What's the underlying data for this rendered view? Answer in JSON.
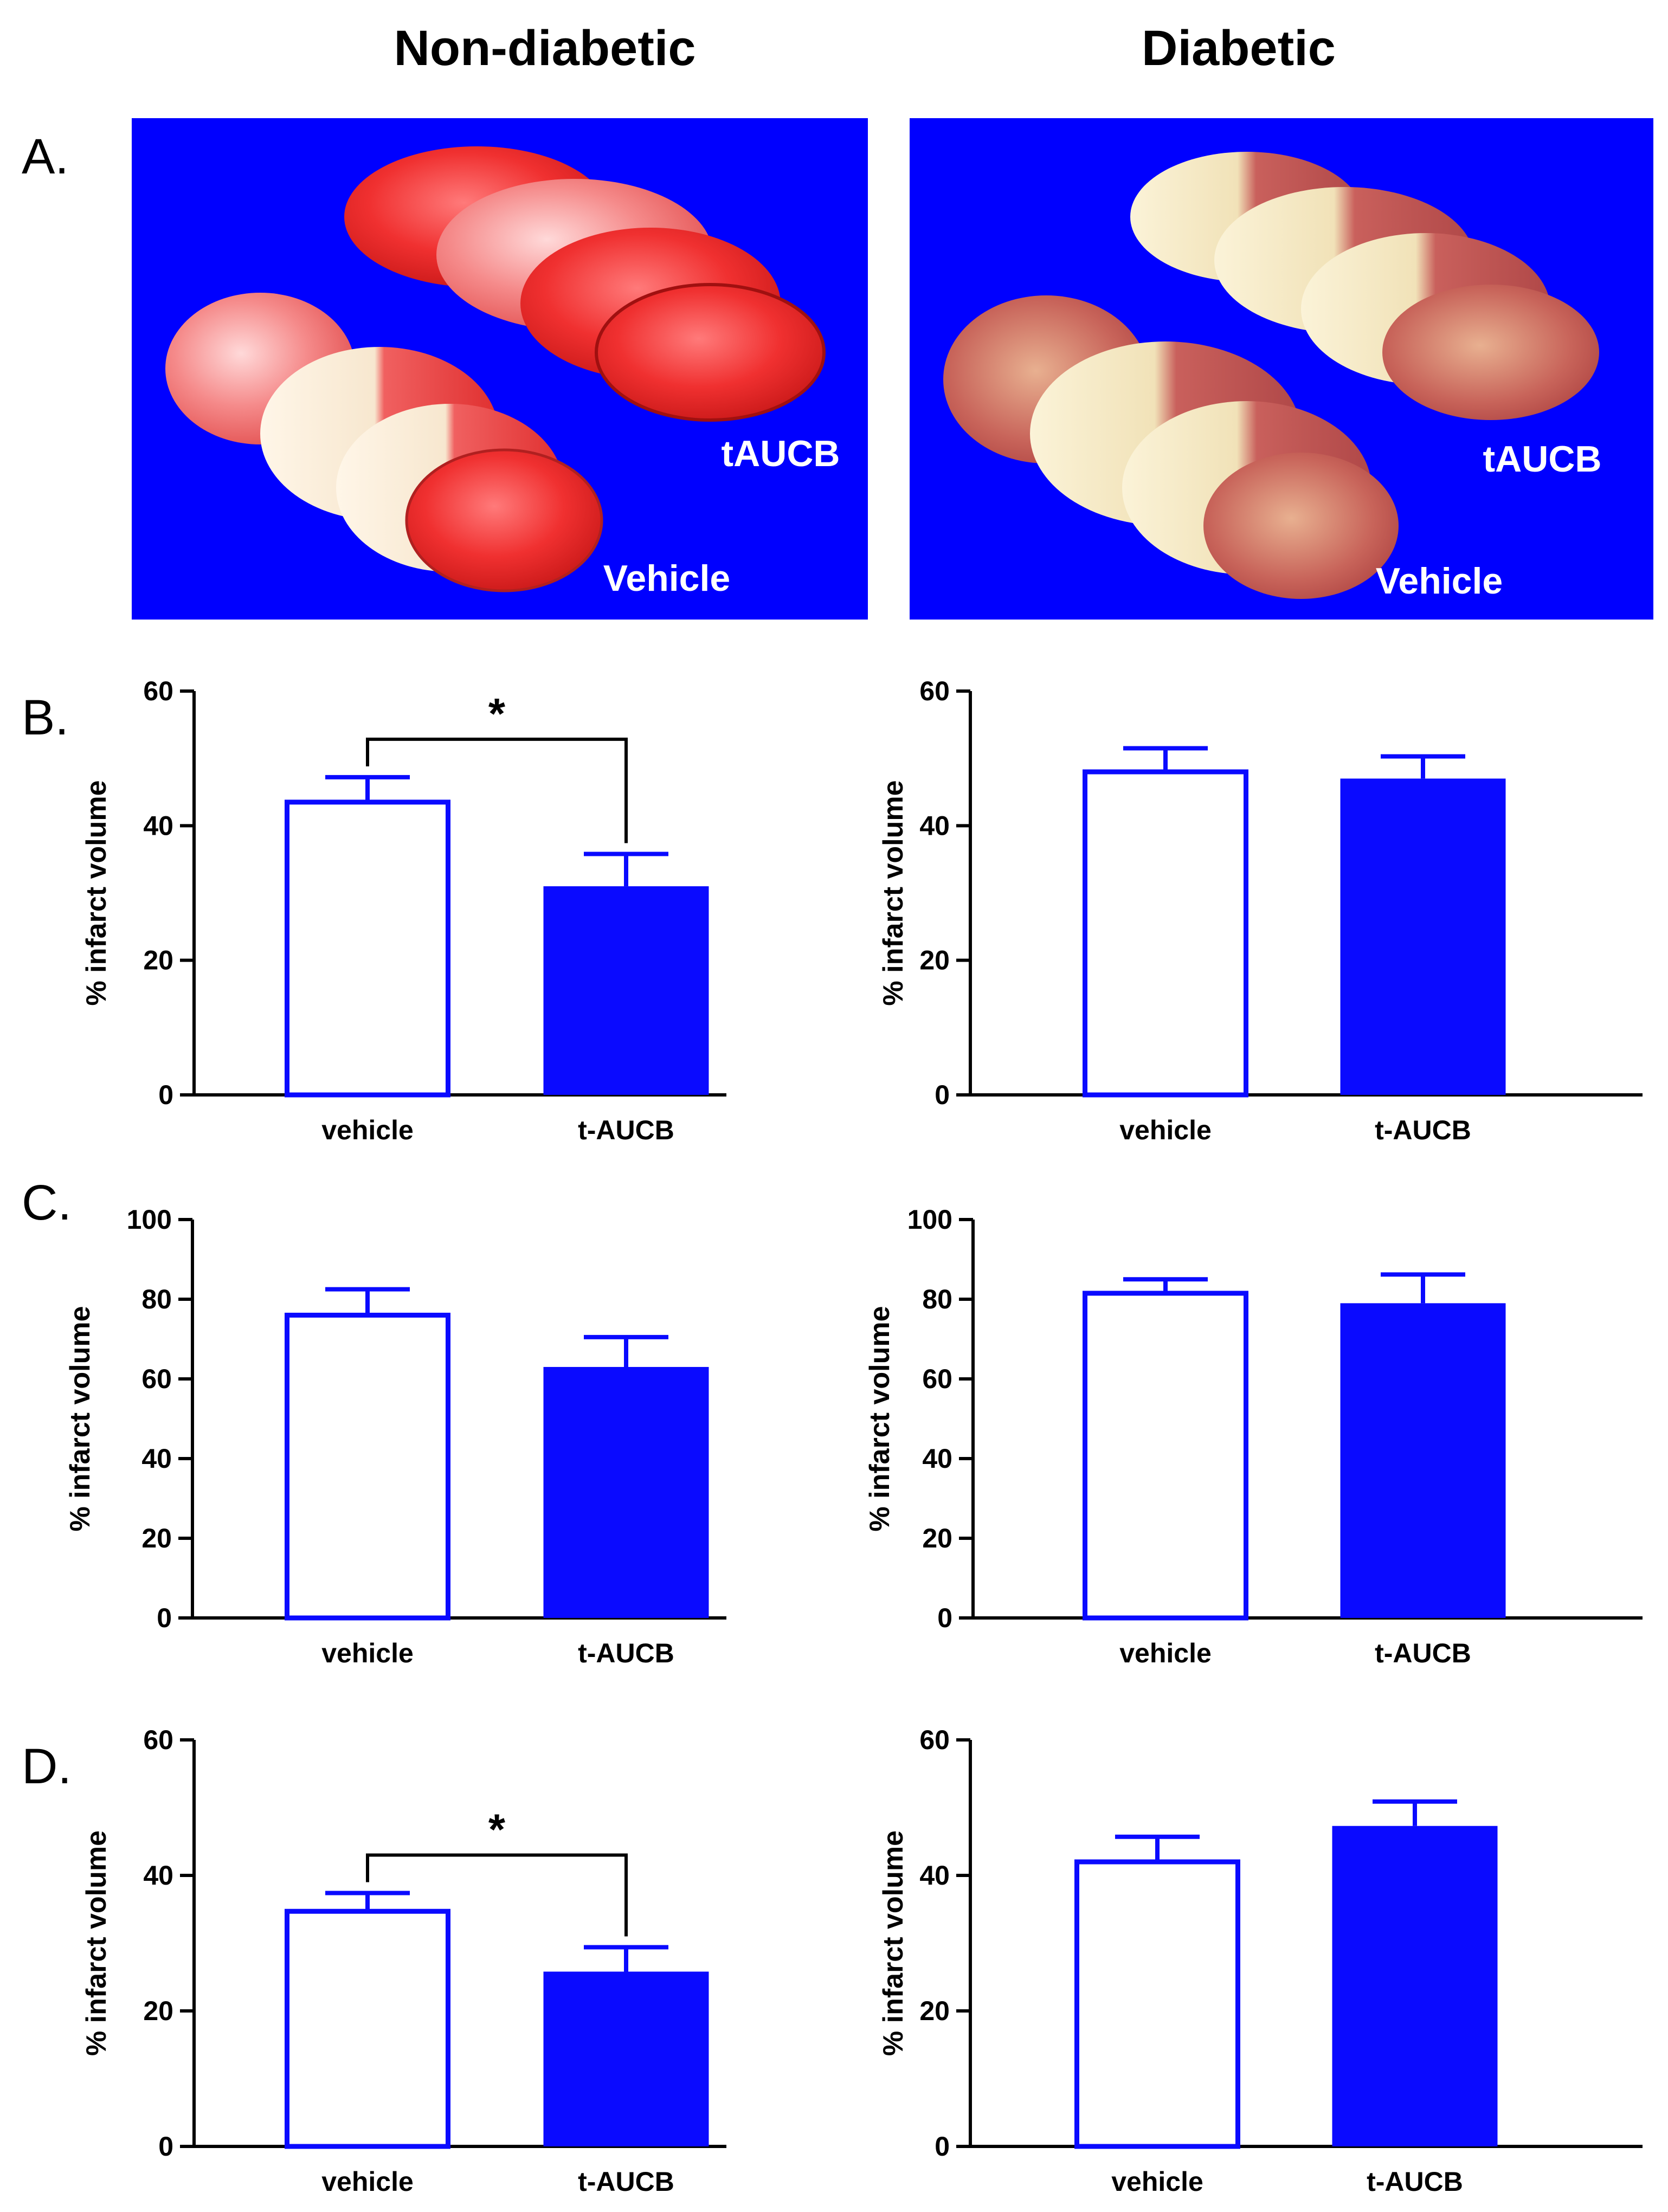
{
  "column_titles": [
    "Non-diabetic",
    "Diabetic"
  ],
  "panel_letters": {
    "A": "A.",
    "B": "B.",
    "C": "C.",
    "D": "D."
  },
  "photos": [
    {
      "top_label": "tAUCB",
      "bottom_label": "Vehicle"
    },
    {
      "top_label": "tAUCB",
      "bottom_label": "Vehicle"
    }
  ],
  "colors": {
    "photo_background": "#0000ff",
    "bar": "#0a0aff",
    "axis": "#000000",
    "bracket": "#000000"
  },
  "chart_data": [
    {
      "type": "bar",
      "panel": "B",
      "column": "Non-diabetic",
      "categories": [
        "vehicle",
        "t-AUCB"
      ],
      "values": [
        43.5,
        31.0
      ],
      "errors": [
        3.7,
        4.8
      ],
      "ylabel": "% infarct volume",
      "ylim": [
        0,
        60
      ],
      "yticks": [
        0,
        20,
        40,
        60
      ],
      "significance": {
        "label": "*",
        "between": [
          0,
          1
        ]
      }
    },
    {
      "type": "bar",
      "panel": "B",
      "column": "Diabetic",
      "categories": [
        "vehicle",
        "t-AUCB"
      ],
      "values": [
        48.0,
        47.0
      ],
      "errors": [
        3.5,
        3.3
      ],
      "ylabel": "% infarct volume",
      "ylim": [
        0,
        60
      ],
      "yticks": [
        0,
        20,
        40,
        60
      ]
    },
    {
      "type": "bar",
      "panel": "C",
      "column": "Non-diabetic",
      "categories": [
        "vehicle",
        "t-AUCB"
      ],
      "values": [
        76,
        63
      ],
      "errors": [
        6.5,
        7.5
      ],
      "ylabel": "% infarct volume",
      "ylim": [
        0,
        100
      ],
      "yticks": [
        0,
        20,
        40,
        60,
        80,
        100
      ]
    },
    {
      "type": "bar",
      "panel": "C",
      "column": "Diabetic",
      "categories": [
        "vehicle",
        "t-AUCB"
      ],
      "values": [
        81.5,
        79
      ],
      "errors": [
        3.5,
        7.2
      ],
      "ylabel": "% infarct volume",
      "ylim": [
        0,
        100
      ],
      "yticks": [
        0,
        20,
        40,
        60,
        80,
        100
      ]
    },
    {
      "type": "bar",
      "panel": "D",
      "column": "Non-diabetic",
      "categories": [
        "vehicle",
        "t-AUCB"
      ],
      "values": [
        34.7,
        25.8
      ],
      "errors": [
        2.7,
        3.6
      ],
      "ylabel": "% infarct volume",
      "ylim": [
        0,
        60
      ],
      "yticks": [
        0,
        20,
        40,
        60
      ],
      "significance": {
        "label": "*",
        "between": [
          0,
          1
        ]
      }
    },
    {
      "type": "bar",
      "panel": "D",
      "column": "Diabetic",
      "categories": [
        "vehicle",
        "t-AUCB"
      ],
      "values": [
        42,
        47.3
      ],
      "errors": [
        3.7,
        3.6
      ],
      "ylabel": "% infarct volume",
      "ylim": [
        0,
        60
      ],
      "yticks": [
        0,
        20,
        40,
        60
      ]
    }
  ]
}
